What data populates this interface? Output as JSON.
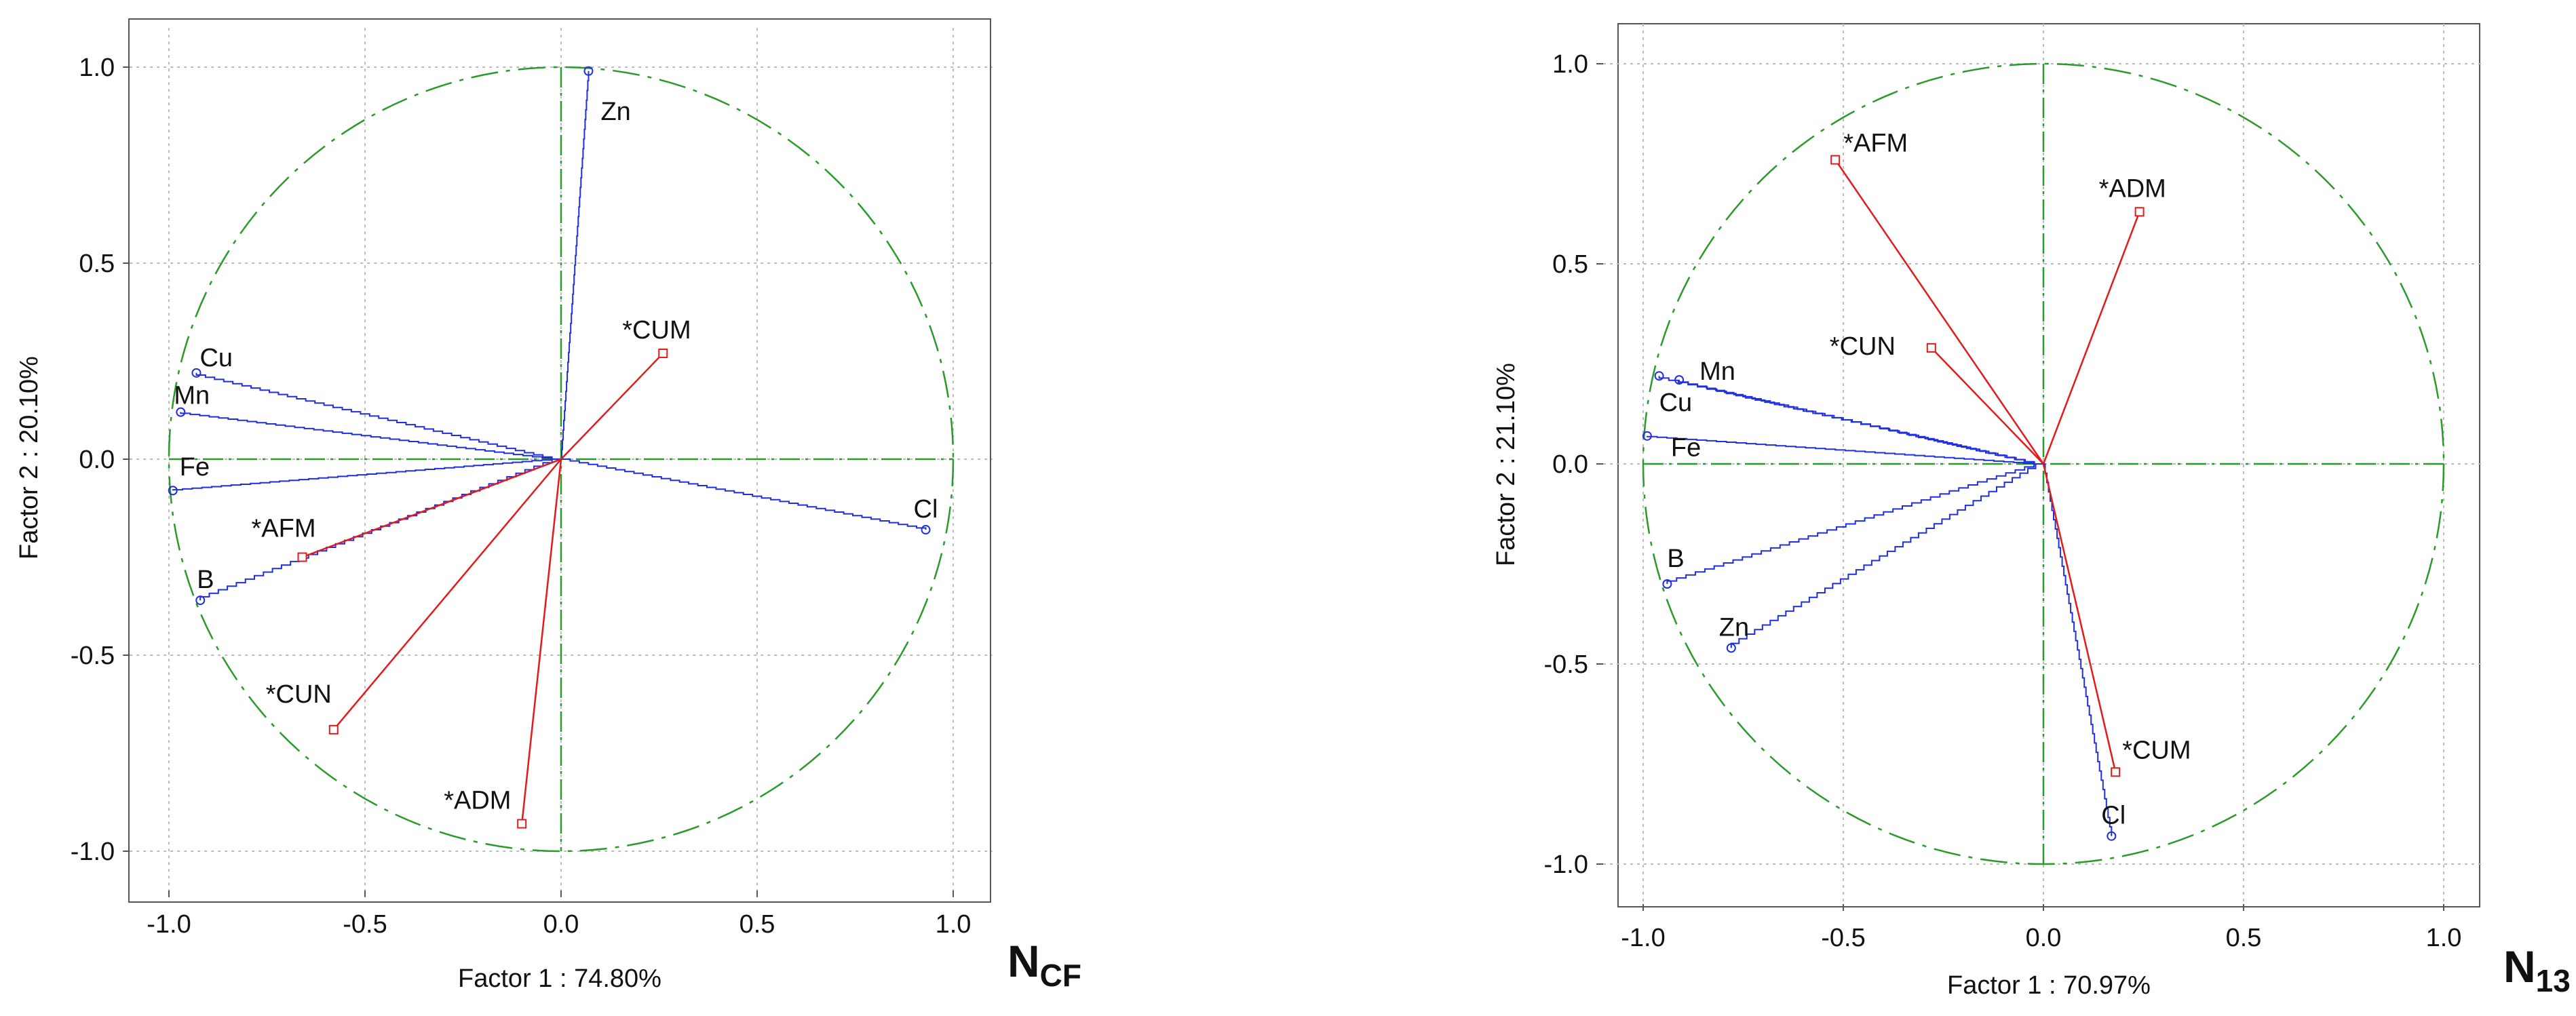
{
  "colors": {
    "variable": "#1f2ee0",
    "supplementary": "#e41a1a",
    "axis": "#2a9a2a",
    "grid": "#bbbbbb",
    "frame": "#555555",
    "text": "#111111"
  },
  "chart_data": [
    {
      "type": "scatter",
      "subtype": "pca-correlation-circle",
      "panel_label_main": "N",
      "panel_label_sub": "CF",
      "xlabel": "Factor 1 : 74.80%",
      "ylabel": "Factor 2 : 20.10%",
      "xlim": [
        -1.1,
        1.1
      ],
      "ylim": [
        -1.1,
        1.1
      ],
      "xticks": [
        "-1.0",
        "-0.5",
        "0.0",
        "0.5",
        "1.0"
      ],
      "yticks": [
        "1.0",
        "0.5",
        "0.0",
        "-0.5",
        "-1.0"
      ],
      "grid": true,
      "variables": [
        {
          "name": "Zn",
          "x": 0.07,
          "y": 0.99
        },
        {
          "name": "Cu",
          "x": -0.93,
          "y": 0.22
        },
        {
          "name": "Mn",
          "x": -0.97,
          "y": 0.12
        },
        {
          "name": "Fe",
          "x": -0.99,
          "y": -0.08
        },
        {
          "name": "B",
          "x": -0.92,
          "y": -0.36
        },
        {
          "name": "Cl",
          "x": 0.93,
          "y": -0.18
        }
      ],
      "supplementary": [
        {
          "name": "*CUM",
          "x": 0.26,
          "y": 0.27
        },
        {
          "name": "*AFM",
          "x": -0.66,
          "y": -0.25
        },
        {
          "name": "*CUN",
          "x": -0.58,
          "y": -0.69
        },
        {
          "name": "*ADM",
          "x": -0.1,
          "y": -0.93
        }
      ]
    },
    {
      "type": "scatter",
      "subtype": "pca-correlation-circle",
      "panel_label_main": "N",
      "panel_label_sub": "13",
      "xlabel": "Factor 1 : 70.97%",
      "ylabel": "Factor 2 : 21.10%",
      "xlim": [
        -1.1,
        1.1
      ],
      "ylim": [
        -1.1,
        1.1
      ],
      "xticks": [
        "-1.0",
        "-0.5",
        "0.0",
        "0.5",
        "1.0"
      ],
      "yticks": [
        "1.0",
        "0.5",
        "0.0",
        "-0.5",
        "-1.0"
      ],
      "grid": true,
      "variables": [
        {
          "name": "Mn",
          "x": -0.91,
          "y": 0.21
        },
        {
          "name": "Cu",
          "x": -0.96,
          "y": 0.22
        },
        {
          "name": "Fe",
          "x": -0.99,
          "y": 0.07
        },
        {
          "name": "B",
          "x": -0.94,
          "y": -0.3
        },
        {
          "name": "Zn",
          "x": -0.78,
          "y": -0.46
        },
        {
          "name": "Cl",
          "x": 0.17,
          "y": -0.93
        }
      ],
      "supplementary": [
        {
          "name": "*AFM",
          "x": -0.52,
          "y": 0.76
        },
        {
          "name": "*ADM",
          "x": 0.24,
          "y": 0.63
        },
        {
          "name": "*CUN",
          "x": -0.28,
          "y": 0.29
        },
        {
          "name": "*CUM",
          "x": 0.18,
          "y": -0.77
        }
      ]
    }
  ]
}
